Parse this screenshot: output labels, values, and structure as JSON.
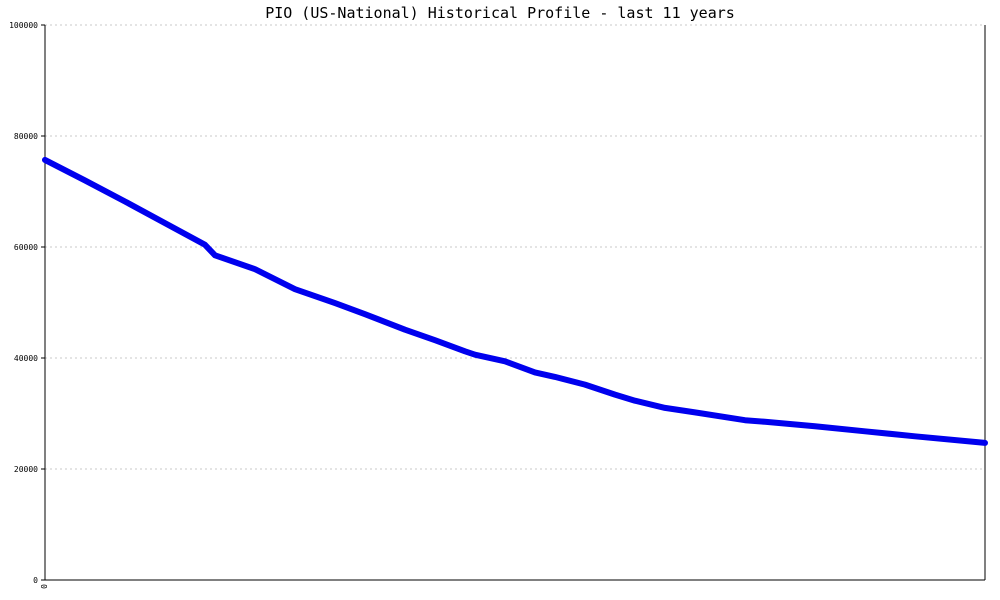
{
  "chart_data": {
    "type": "line",
    "title": "PIO (US-National) Historical Profile - last 11 years",
    "xlabel": "",
    "ylabel": "",
    "ylim": [
      0,
      100000
    ],
    "yticks": [
      0,
      20000,
      40000,
      60000,
      80000,
      100000
    ],
    "ytick_labels": [
      "0",
      "20000",
      "40000",
      "60000",
      "80000",
      "100000"
    ],
    "xtick_labels": [
      "0"
    ],
    "grid": true,
    "legend": "none",
    "series": [
      {
        "color": "#0000ee",
        "x": [
          0,
          0.0426,
          0.0851,
          0.1277,
          0.1702,
          0.1809,
          0.2234,
          0.266,
          0.3085,
          0.3404,
          0.3617,
          0.383,
          0.4149,
          0.4468,
          0.4574,
          0.4894,
          0.5213,
          0.5426,
          0.5745,
          0.6064,
          0.6277,
          0.6596,
          0.6915,
          0.7447,
          0.766,
          0.8191,
          0.8723,
          0.9255,
          1.0
        ],
        "values": [
          75700,
          72000,
          68200,
          64300,
          60400,
          58500,
          56000,
          52400,
          49900,
          47900,
          46500,
          45100,
          43200,
          41200,
          40600,
          39400,
          37400,
          36600,
          35200,
          33400,
          32300,
          31000,
          30200,
          28800,
          28500,
          27700,
          26800,
          25900,
          24700
        ]
      }
    ]
  }
}
